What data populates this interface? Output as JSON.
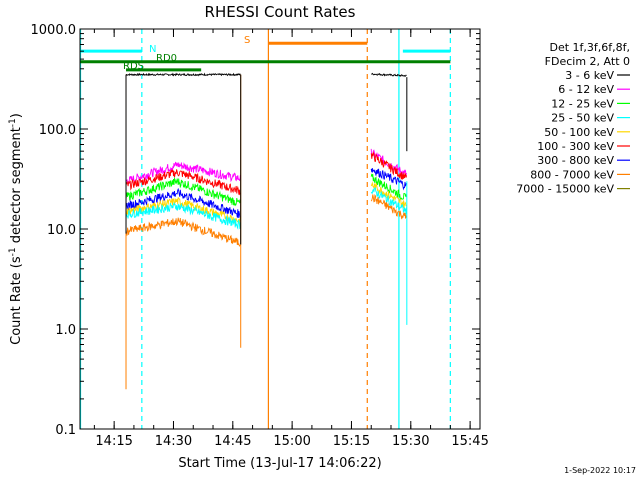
{
  "chart_data": {
    "type": "line",
    "title": "RHESSI Count Rates",
    "xlabel": "Start Time (13-Jul-17 14:06:22)",
    "ylabel": "Count Rate (s",
    "ylabel_sup1": "-1",
    "ylabel_mid": " detector segment",
    "ylabel_sup2": "-1",
    "ylabel_end": ")",
    "x_scale": "time",
    "y_scale": "log",
    "xlim": [
      "14:06:22",
      "15:47:30"
    ],
    "ylim": [
      0.1,
      1000
    ],
    "x_ticks": [
      "14:15",
      "14:30",
      "14:45",
      "15:00",
      "15:15",
      "15:30",
      "15:45"
    ],
    "y_ticks": [
      "0.1",
      "1.0",
      "10.0",
      "100.0",
      "1000.0"
    ],
    "legend": {
      "placement": "top-right",
      "header": [
        "Det 1f,3f,6f,8f,",
        "FDecim 2, Att 0"
      ],
      "entries": [
        {
          "label": "3 - 6 keV",
          "color": "#000000"
        },
        {
          "label": "6 - 12 keV",
          "color": "#ff00ff"
        },
        {
          "label": "12 - 25 keV",
          "color": "#00ff00"
        },
        {
          "label": "25 - 50 keV",
          "color": "#00ffff"
        },
        {
          "label": "50 - 100 keV",
          "color": "#ffd700"
        },
        {
          "label": "100 - 300 keV",
          "color": "#ff0000"
        },
        {
          "label": "300 - 800 keV",
          "color": "#0000ff"
        },
        {
          "label": "800 - 7000 keV",
          "color": "#ff7f00"
        },
        {
          "label": "7000 - 15000 keV",
          "color": "#808000"
        }
      ]
    },
    "flag_labels": {
      "n": "N",
      "rd0": "RD0",
      "rds": "RDS",
      "s": "S"
    },
    "segments": [
      {
        "start": "14:18:00",
        "end": "14:47:00"
      },
      {
        "start": "15:20:00",
        "end": "15:29:00"
      }
    ],
    "series": [
      {
        "color": "#000000",
        "seg1": [
          [
            "14:18:00",
            350
          ],
          [
            "14:47:00",
            350
          ]
        ],
        "seg2": [
          [
            "15:20:00",
            355
          ],
          [
            "15:29:00",
            340
          ]
        ]
      },
      {
        "color": "#ff00ff",
        "seg1": [
          [
            "14:18:00",
            30
          ],
          [
            "14:31:00",
            44
          ],
          [
            "14:47:00",
            32
          ]
        ],
        "seg2": [
          [
            "15:20:00",
            58
          ],
          [
            "15:29:00",
            35
          ]
        ]
      },
      {
        "color": "#ff0000",
        "seg1": [
          [
            "14:18:00",
            27
          ],
          [
            "14:31:00",
            37
          ],
          [
            "14:47:00",
            24
          ]
        ],
        "seg2": [
          [
            "15:20:00",
            55
          ],
          [
            "15:29:00",
            32
          ]
        ]
      },
      {
        "color": "#00ff00",
        "seg1": [
          [
            "14:18:00",
            21
          ],
          [
            "14:31:00",
            30
          ],
          [
            "14:47:00",
            18
          ]
        ],
        "seg2": [
          [
            "15:20:00",
            33
          ],
          [
            "15:29:00",
            20
          ]
        ]
      },
      {
        "color": "#0000ff",
        "seg1": [
          [
            "14:18:00",
            17
          ],
          [
            "14:31:00",
            23
          ],
          [
            "14:47:00",
            14
          ]
        ],
        "seg2": [
          [
            "15:20:00",
            40
          ],
          [
            "15:29:00",
            27
          ]
        ]
      },
      {
        "color": "#ffd700",
        "seg1": [
          [
            "14:18:00",
            15
          ],
          [
            "14:31:00",
            19
          ],
          [
            "14:47:00",
            12
          ]
        ],
        "seg2": [
          [
            "15:20:00",
            28
          ],
          [
            "15:29:00",
            17
          ]
        ]
      },
      {
        "color": "#00ffff",
        "seg1": [
          [
            "14:18:00",
            14
          ],
          [
            "14:31:00",
            17
          ],
          [
            "14:47:00",
            11
          ]
        ],
        "seg2": [
          [
            "15:20:00",
            25
          ],
          [
            "15:29:00",
            15
          ]
        ]
      },
      {
        "color": "#ff7f00",
        "seg1": [
          [
            "14:18:00",
            9.5
          ],
          [
            "14:31:00",
            12
          ],
          [
            "14:47:00",
            7.2
          ]
        ],
        "seg2": [
          [
            "15:20:00",
            21
          ],
          [
            "15:29:00",
            13
          ]
        ]
      }
    ],
    "solid_vlines": [
      {
        "x": "14:06:30",
        "color": "#00ffff"
      },
      {
        "x": "14:54:00",
        "color": "#ff7f00"
      },
      {
        "x": "15:27:00",
        "color": "#00ffff"
      }
    ],
    "dashed_vlines": [
      {
        "x": "14:22:00",
        "color": "#00ffff"
      },
      {
        "x": "15:19:00",
        "color": "#ff7f00"
      },
      {
        "x": "15:40:00",
        "color": "#00ffff"
      }
    ],
    "flag_bars": [
      {
        "start": "14:06:30",
        "end": "14:22:00",
        "y": 600,
        "color": "#00ffff"
      },
      {
        "start": "15:28:00",
        "end": "15:40:00",
        "y": 600,
        "color": "#00ffff"
      },
      {
        "start": "14:06:30",
        "end": "15:40:00",
        "y": 470,
        "color": "#008000"
      },
      {
        "start": "14:18:00",
        "end": "14:37:00",
        "y": 390,
        "color": "#008000"
      },
      {
        "start": "14:54:00",
        "end": "15:19:00",
        "y": 720,
        "color": "#ff7f00"
      }
    ],
    "timestamp": "1-Sep-2022 10:17"
  }
}
